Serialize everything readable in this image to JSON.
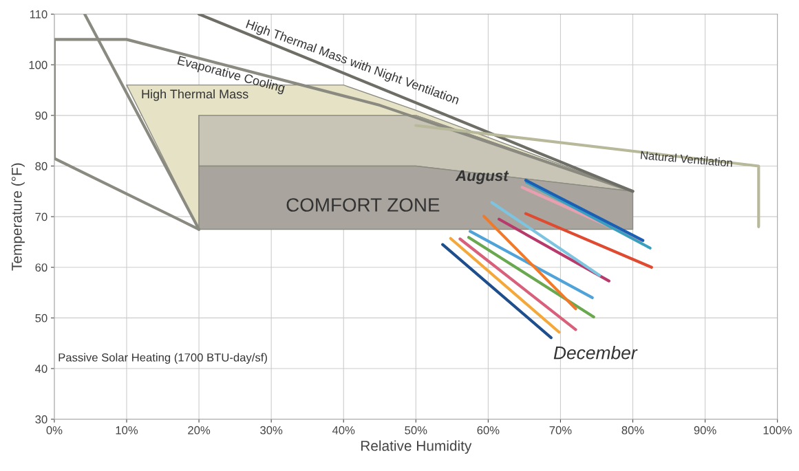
{
  "chart_data": {
    "type": "line",
    "xlabel": "Relative Humidity",
    "ylabel": "Temperature (°F)",
    "xlim": [
      0,
      100
    ],
    "ylim": [
      30,
      110
    ],
    "xticks": [
      {
        "value": 0,
        "label": "0%"
      },
      {
        "value": 10,
        "label": "10%"
      },
      {
        "value": 20,
        "label": "20%"
      },
      {
        "value": 30,
        "label": "30%"
      },
      {
        "value": 40,
        "label": "40%"
      },
      {
        "value": 50,
        "label": "50%"
      },
      {
        "value": 60,
        "label": "60%"
      },
      {
        "value": 70,
        "label": "70%"
      },
      {
        "value": 80,
        "label": "80%"
      },
      {
        "value": 90,
        "label": "90%"
      },
      {
        "value": 100,
        "label": "100%"
      }
    ],
    "yticks": [
      30,
      40,
      50,
      60,
      70,
      80,
      90,
      100,
      110
    ],
    "grid": true,
    "line_style": "solid",
    "marker": "none",
    "series": [
      {
        "type": "area",
        "color": "#e6e2c6",
        "x": [
          10,
          40,
          50,
          80,
          50,
          20,
          20,
          10
        ],
        "values": [
          96,
          96,
          91,
          75,
          90,
          90,
          67.5,
          96
        ]
      },
      {
        "type": "area",
        "color": "#c9c5b6",
        "x": [
          20,
          50,
          80,
          50,
          20,
          20
        ],
        "values": [
          90,
          90,
          75,
          80,
          80,
          90
        ]
      },
      {
        "type": "area",
        "color": "#a9a59e",
        "x": [
          20,
          50,
          80,
          80,
          20,
          20
        ],
        "values": [
          80,
          80,
          75,
          67.5,
          67.5,
          80
        ]
      },
      {
        "color": "#8a8a80",
        "x": [
          20,
          0,
          0,
          10,
          45,
          80
        ],
        "values": [
          67.5,
          81.5,
          105,
          105,
          92,
          75
        ]
      },
      {
        "color": "#8a8a80",
        "x": [
          4.2,
          20
        ],
        "values": [
          110,
          67.5
        ]
      },
      {
        "color": "#6e6e66",
        "x": [
          20,
          80
        ],
        "values": [
          110,
          75
        ]
      },
      {
        "color": "#b8b89a",
        "x": [
          50,
          97.4,
          97.4
        ],
        "values": [
          88,
          80,
          68
        ]
      },
      {
        "color": "#1f4e8c",
        "x": [
          53.7,
          68.7
        ],
        "values": [
          64.5,
          46.1
        ]
      },
      {
        "color": "#f5a83a",
        "x": [
          54.8,
          69.8
        ],
        "values": [
          65.7,
          47.2
        ]
      },
      {
        "color": "#d9607a",
        "x": [
          56.1,
          72.1
        ],
        "values": [
          65.6,
          47.7
        ]
      },
      {
        "color": "#6aa84f",
        "x": [
          57.3,
          74.6
        ],
        "values": [
          65.9,
          50.2
        ]
      },
      {
        "color": "#4fa3d9",
        "x": [
          57.5,
          74.4
        ],
        "values": [
          67.1,
          54.0
        ]
      },
      {
        "color": "#f07a2a",
        "x": [
          59.4,
          72.1
        ],
        "values": [
          70.1,
          51.8
        ]
      },
      {
        "color": "#b83a6a",
        "x": [
          61.5,
          76.7
        ],
        "values": [
          69.5,
          57.3
        ]
      },
      {
        "color": "#7cc4e0",
        "x": [
          60.5,
          75.4
        ],
        "values": [
          72.8,
          58.4
        ]
      },
      {
        "color": "#e04a30",
        "x": [
          65.2,
          82.6
        ],
        "values": [
          70.6,
          60.0
        ]
      },
      {
        "color": "#e8a0b0",
        "x": [
          64.7,
          81.2
        ],
        "values": [
          75.8,
          65.2
        ]
      },
      {
        "color": "#3aa0c0",
        "x": [
          65.3,
          82.4
        ],
        "values": [
          76.8,
          63.8
        ]
      },
      {
        "color": "#1a5fb4",
        "x": [
          65.2,
          81.4
        ],
        "values": [
          77.2,
          65.3
        ]
      }
    ],
    "annotations": [
      "High Thermal Mass",
      "Evaporative Cooling",
      "High Thermal Mass with Night Ventilation",
      "Natural Ventilation",
      "COMFORT ZONE",
      "August",
      "December",
      "Passive Solar Heating (1700 BTU-day/sf)"
    ]
  }
}
